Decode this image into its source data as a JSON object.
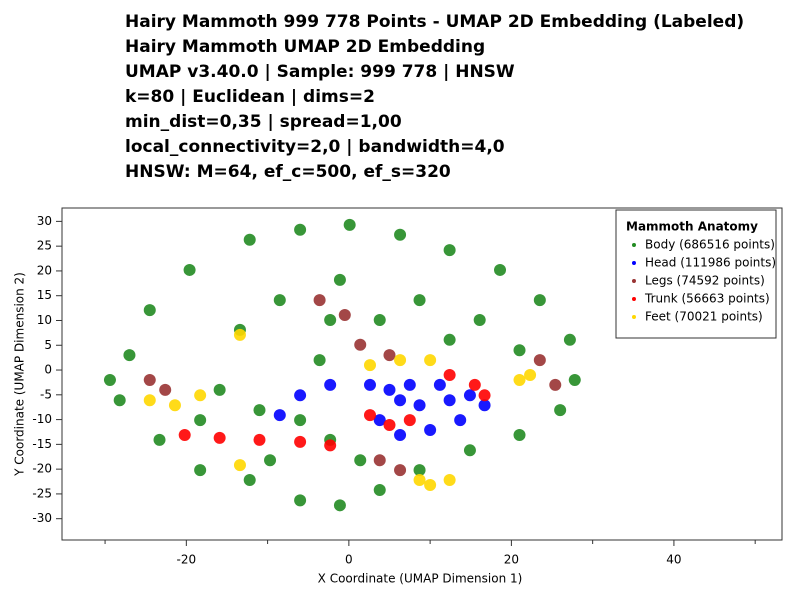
{
  "chart_data": {
    "type": "scatter",
    "title": "Hairy Mammoth 999 778 Points - UMAP 2D Embedding (Labeled)",
    "subtitle": [
      "Hairy Mammoth UMAP 2D Embedding",
      "UMAP v3.40.0 | Sample: 999 778 | HNSW",
      "k=80 | Euclidean | dims=2",
      "min_dist=0,35 | spread=1,00",
      "local_connectivity=2,0 | bandwidth=4,0",
      "HNSW: M=64, ef_c=500, ef_s=320"
    ],
    "xlabel": "X Coordinate (UMAP Dimension 1)",
    "ylabel": "Y Coordinate (UMAP Dimension 2)",
    "xlim": [
      -35.3,
      53.3
    ],
    "ylim": [
      -34.3,
      32.7
    ],
    "xticks": [
      -20,
      0,
      20,
      40
    ],
    "xticks_minor": [
      -30,
      -10,
      10,
      30,
      50
    ],
    "yticks": [
      -30,
      -25,
      -20,
      -15,
      -10,
      -5,
      0,
      5,
      10,
      15,
      20,
      25,
      30
    ],
    "legend_title": "Mammoth Anatomy",
    "legend": "upper right",
    "series": [
      {
        "name": "Body (686516 points)",
        "color": "#228b22",
        "x": [
          -27.0,
          -24.5,
          -19.6,
          -12.2,
          -6.0,
          0.1,
          6.3,
          12.4,
          18.6,
          23.5,
          27.2,
          27.8,
          26.0,
          21.0,
          14.9,
          8.7,
          3.8,
          -1.1,
          -6.0,
          -12.2,
          -18.3,
          -23.3,
          -28.2,
          -29.4,
          -8.5,
          -2.3,
          -1.1,
          -3.6,
          -6.0,
          -11.0,
          -15.9,
          8.7,
          16.1,
          21.0,
          12.4,
          -2.3,
          1.4,
          -13.4,
          3.8,
          -9.7,
          -18.3
        ],
        "y": [
          3.0,
          12.1,
          20.2,
          26.3,
          28.3,
          29.3,
          27.3,
          24.2,
          20.2,
          14.1,
          6.1,
          -2.0,
          -8.1,
          -13.1,
          -16.2,
          -20.2,
          -24.2,
          -27.3,
          -26.3,
          -22.2,
          -20.2,
          -14.1,
          -6.1,
          -2.0,
          14.1,
          10.1,
          18.2,
          2.0,
          -10.1,
          -8.1,
          -4.0,
          14.1,
          10.1,
          4.0,
          6.1,
          -14.1,
          -18.2,
          8.1,
          10.1,
          -18.2,
          -10.1
        ]
      },
      {
        "name": "Head (111986 points)",
        "color": "#0000ff",
        "x": [
          -8.5,
          -6.0,
          -2.3,
          2.6,
          5.0,
          7.5,
          11.2,
          14.9,
          16.7,
          13.7,
          10.0,
          6.3,
          3.8,
          8.7,
          12.4,
          6.3
        ],
        "y": [
          -9.1,
          -5.1,
          -3.0,
          -3.0,
          -4.0,
          -3.0,
          -3.0,
          -5.1,
          -7.1,
          -10.1,
          -12.1,
          -13.1,
          -10.1,
          -7.1,
          -6.1,
          -6.1
        ]
      },
      {
        "name": "Legs (74592 points)",
        "color": "#993333",
        "x": [
          -24.5,
          -22.6,
          1.4,
          5.0,
          23.5,
          25.4,
          3.8,
          6.3,
          -3.6,
          -0.5
        ],
        "y": [
          -2.0,
          -4.0,
          5.1,
          3.0,
          2.0,
          -3.0,
          -18.2,
          -20.2,
          14.1,
          11.1
        ]
      },
      {
        "name": "Trunk (56663 points)",
        "color": "#ff0000",
        "x": [
          -20.2,
          -15.9,
          -11.0,
          -6.0,
          -2.3,
          2.6,
          5.0,
          7.5,
          12.4,
          15.5,
          16.7
        ],
        "y": [
          -13.1,
          -13.7,
          -14.1,
          -14.5,
          -15.2,
          -9.1,
          -11.1,
          -10.1,
          -1.0,
          -3.0,
          -5.1
        ]
      },
      {
        "name": "Feet (70021 points)",
        "color": "#ffd700",
        "x": [
          -24.5,
          -21.4,
          -18.3,
          -13.4,
          -13.4,
          2.6,
          6.3,
          10.0,
          21.0,
          22.3,
          10.0,
          12.4,
          8.7
        ],
        "y": [
          -6.1,
          -7.1,
          -5.1,
          7.1,
          -19.2,
          1.0,
          2.0,
          2.0,
          -2.0,
          -1.0,
          -23.2,
          -22.2,
          -22.2
        ]
      }
    ]
  }
}
